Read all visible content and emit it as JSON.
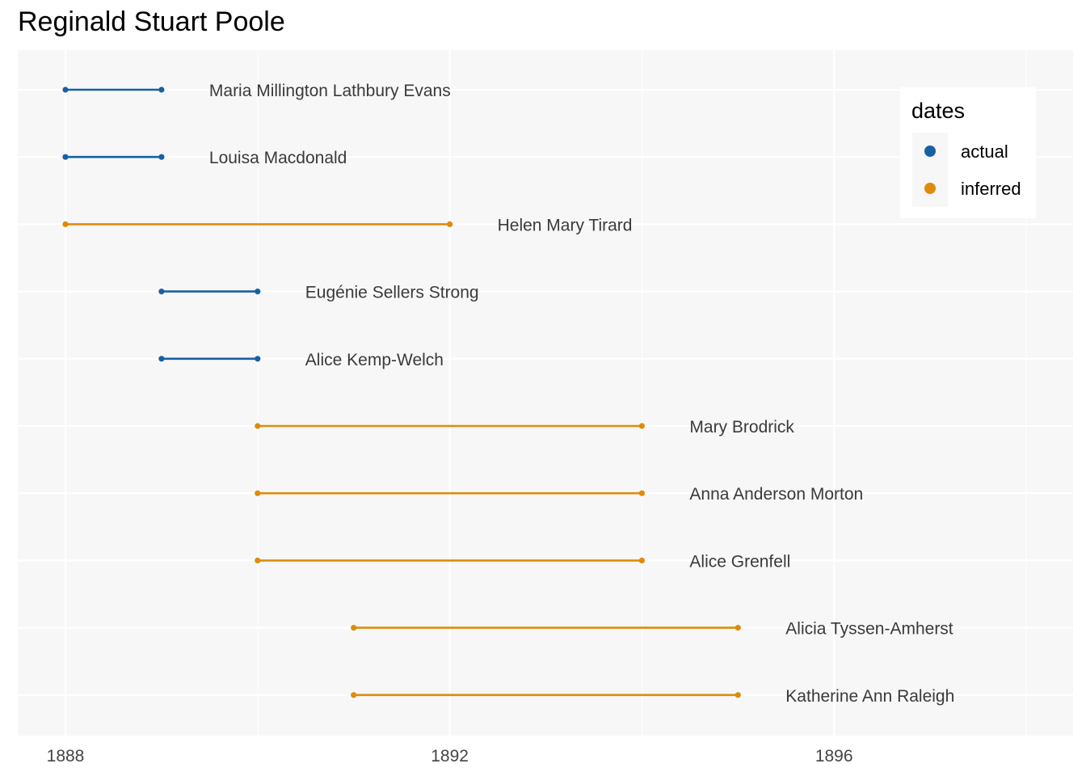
{
  "chart_data": {
    "type": "line",
    "title": "Reginald Stuart Poole",
    "xlabel": "",
    "ylabel": "",
    "xlim": [
      1887.5,
      1898.3
    ],
    "x_ticks": [
      1888,
      1892,
      1896
    ],
    "grid": true,
    "legend": {
      "title": "dates",
      "position": "top-right",
      "entries": [
        {
          "label": "actual",
          "color": "#1661a5"
        },
        {
          "label": "inferred",
          "color": "#e08b0b"
        }
      ]
    },
    "segments": [
      {
        "label": "Maria Millington Lathbury Evans",
        "start": 1888,
        "end": 1889,
        "dates": "actual"
      },
      {
        "label": "Louisa Macdonald",
        "start": 1888,
        "end": 1889,
        "dates": "actual"
      },
      {
        "label": "Helen Mary Tirard",
        "start": 1888,
        "end": 1892,
        "dates": "inferred"
      },
      {
        "label": "Eugénie Sellers Strong",
        "start": 1889,
        "end": 1890,
        "dates": "actual"
      },
      {
        "label": "Alice Kemp-Welch",
        "start": 1889,
        "end": 1890,
        "dates": "actual"
      },
      {
        "label": "Mary Brodrick",
        "start": 1890,
        "end": 1894,
        "dates": "inferred"
      },
      {
        "label": "Anna Anderson Morton",
        "start": 1890,
        "end": 1894,
        "dates": "inferred"
      },
      {
        "label": "Alice Grenfell",
        "start": 1890,
        "end": 1894,
        "dates": "inferred"
      },
      {
        "label": "Alicia Tyssen-Amherst",
        "start": 1891,
        "end": 1895,
        "dates": "inferred"
      },
      {
        "label": "Katherine Ann Raleigh",
        "start": 1891,
        "end": 1895,
        "dates": "inferred"
      }
    ]
  }
}
